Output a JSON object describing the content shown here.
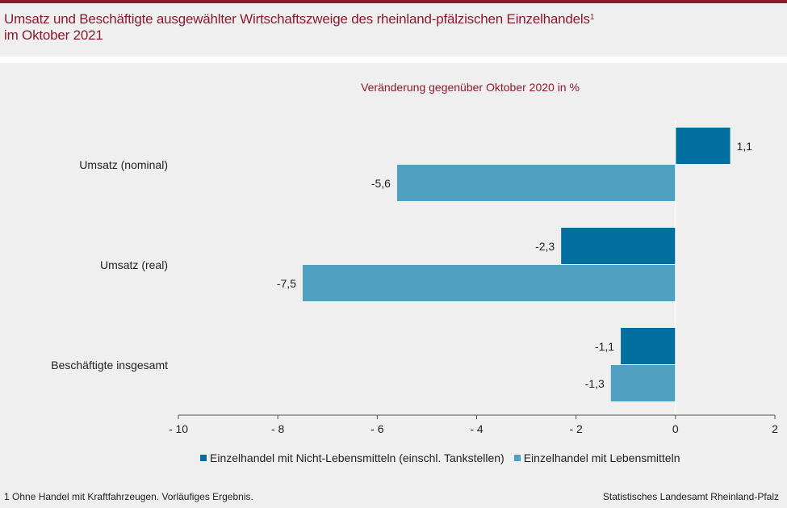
{
  "header": {
    "title_line1": "Umsatz und Beschäftigte ausgewählter Wirtschaftszweige des rheinland-pfälzischen Einzelhandels",
    "title_sup": "1",
    "title_line2": "im Oktober 2021"
  },
  "chart_data": {
    "type": "bar",
    "orientation": "horizontal",
    "subtitle": "Veränderung gegenüber Oktober 2020 in %",
    "categories": [
      "Umsatz (nominal)",
      "Umsatz (real)",
      "Beschäftigte insgesamt"
    ],
    "series": [
      {
        "name": "Einzelhandel mit Nicht-Lebensmitteln (einschl. Tankstellen)",
        "color": "#006fa0",
        "values": [
          1.1,
          -2.3,
          -1.1
        ],
        "labels": [
          "1,1",
          "-2,3",
          "-1,1"
        ]
      },
      {
        "name": "Einzelhandel mit Lebensmitteln",
        "color": "#4fa0c1",
        "values": [
          -5.6,
          -7.5,
          -1.3
        ],
        "labels": [
          "-5,6",
          "-7,5",
          "-1,3"
        ]
      }
    ],
    "xlim": [
      -10,
      2
    ],
    "xticks": [
      -10,
      -8,
      -6,
      -4,
      -2,
      0,
      2
    ],
    "xtick_labels": [
      "- 10",
      "- 8",
      "- 6",
      "- 4",
      "- 2",
      "0",
      "2"
    ],
    "legend_position": "bottom",
    "grid": false
  },
  "footer": {
    "footnote": "1 Ohne Handel mit Kraftfahrzeugen. Vorläufiges Ergebnis.",
    "source": "Statistisches Landesamt Rheinland-Pfalz"
  }
}
